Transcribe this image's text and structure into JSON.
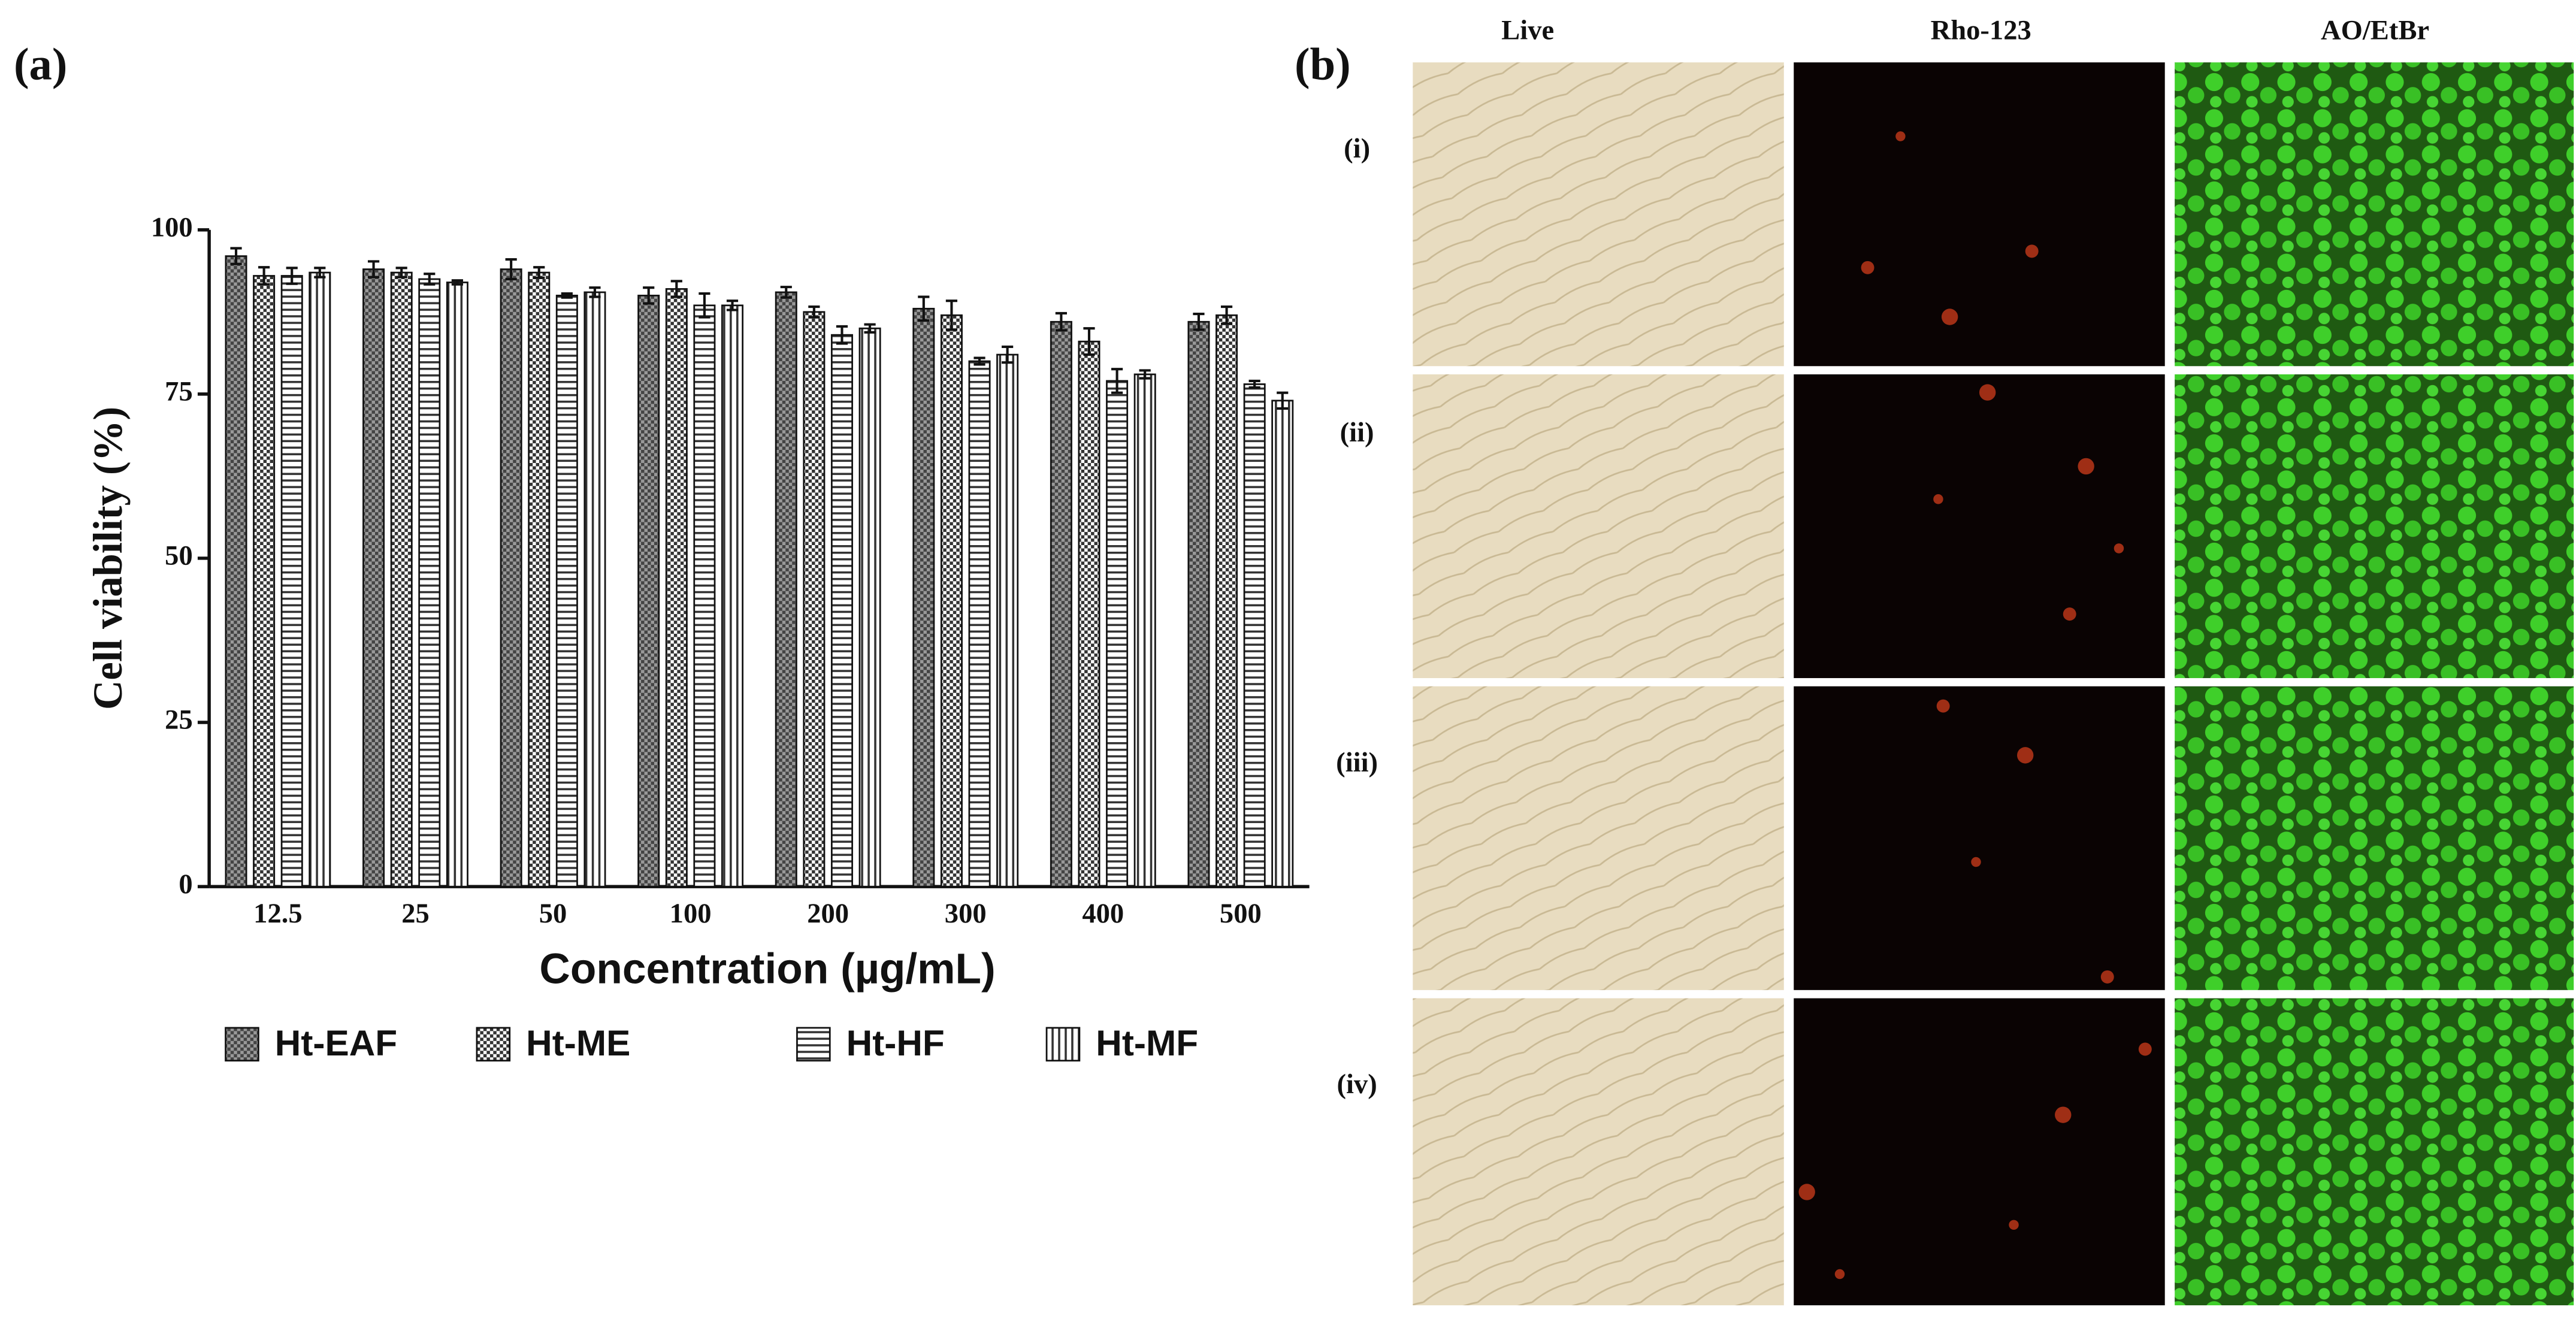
{
  "figure": {
    "panel_a": "(a)",
    "panel_b": "(b)",
    "columns": [
      "Live",
      "Rho-123",
      "AO/EtBr"
    ],
    "rows": [
      "(i)",
      "(ii)",
      "(iii)",
      "(iv)"
    ]
  },
  "chart_data": {
    "type": "bar",
    "y_label": "Cell viability (%)",
    "x_label": "Concentration (µg/mL)",
    "categories": [
      "12.5",
      "25",
      "50",
      "100",
      "200",
      "300",
      "400",
      "500"
    ],
    "series": [
      {
        "name": "Ht-EAF",
        "color": "#444444",
        "pattern": "dots",
        "values": [
          96,
          94,
          94,
          90,
          90.5,
          88,
          86,
          86
        ],
        "errors": [
          1.2,
          1.2,
          1.5,
          1.2,
          0.8,
          1.8,
          1.3,
          1.2
        ]
      },
      {
        "name": "Ht-ME",
        "color": "#333333",
        "pattern": "checker",
        "values": [
          93,
          93.5,
          93.5,
          91,
          87.5,
          87,
          83,
          87
        ],
        "errors": [
          1.3,
          0.7,
          0.8,
          1.2,
          0.8,
          2.2,
          2.0,
          1.3
        ]
      },
      {
        "name": "Ht-HF",
        "color": "#333333",
        "pattern": "horizontal",
        "values": [
          93,
          92.5,
          90,
          88.5,
          84,
          80,
          77,
          76.5
        ],
        "errors": [
          1.2,
          0.8,
          0.3,
          1.8,
          1.3,
          0.5,
          1.8,
          0.5
        ]
      },
      {
        "name": "Ht-MF",
        "color": "#333333",
        "pattern": "vertical",
        "values": [
          93.5,
          92,
          90.5,
          88.5,
          85,
          81,
          78,
          74
        ],
        "errors": [
          0.7,
          0.3,
          0.7,
          0.7,
          0.6,
          1.2,
          0.6,
          1.2
        ]
      }
    ],
    "ylim": [
      0,
      100
    ],
    "yticks": [
      0,
      25,
      50,
      75,
      100
    ],
    "grid": false,
    "legend": "bottom"
  }
}
